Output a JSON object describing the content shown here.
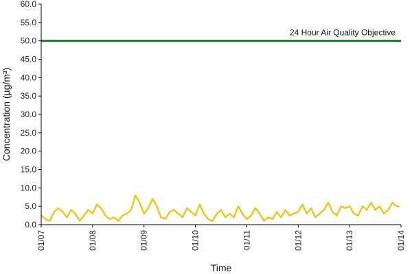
{
  "chart_data": {
    "type": "line",
    "ylabel": "Concentration (µg/m³)",
    "xlabel": "Time",
    "ylim": [
      0,
      60
    ],
    "yticks": [
      "0.0",
      "5.0",
      "10.0",
      "15.0",
      "20.0",
      "25.0",
      "30.0",
      "35.0",
      "40.0",
      "45.0",
      "50.0",
      "55.0",
      "60.0"
    ],
    "xlim": [
      "01/07",
      "01/14"
    ],
    "xticks": [
      "01/07",
      "01/08",
      "01/09",
      "01/10",
      "01/11",
      "01/12",
      "01/13",
      "01/14"
    ],
    "grid": false,
    "annotation": "24 Hour Air Quality Objective",
    "objective_value": 50,
    "series": [
      {
        "color": "#f2c21a",
        "points": [
          [
            "01/07 00:00",
            2.5
          ],
          [
            "01/07 02:00",
            1.5
          ],
          [
            "01/07 04:00",
            1.0
          ],
          [
            "01/07 06:00",
            3.5
          ],
          [
            "01/07 08:00",
            4.5
          ],
          [
            "01/07 10:00",
            3.5
          ],
          [
            "01/07 12:00",
            2.0
          ],
          [
            "01/07 14:00",
            4.0
          ],
          [
            "01/07 16:00",
            3.0
          ],
          [
            "01/07 18:00",
            1.0
          ],
          [
            "01/07 20:00",
            2.5
          ],
          [
            "01/07 22:00",
            4.0
          ],
          [
            "01/08 00:00",
            3.0
          ],
          [
            "01/08 02:00",
            5.5
          ],
          [
            "01/08 04:00",
            4.5
          ],
          [
            "01/08 06:00",
            2.5
          ],
          [
            "01/08 08:00",
            1.5
          ],
          [
            "01/08 10:00",
            2.0
          ],
          [
            "01/08 12:00",
            1.0
          ],
          [
            "01/08 14:00",
            2.5
          ],
          [
            "01/08 16:00",
            3.0
          ],
          [
            "01/08 18:00",
            4.0
          ],
          [
            "01/08 20:00",
            8.0
          ],
          [
            "01/08 22:00",
            6.0
          ],
          [
            "01/09 00:00",
            3.0
          ],
          [
            "01/09 02:00",
            4.5
          ],
          [
            "01/09 04:00",
            7.0
          ],
          [
            "01/09 06:00",
            5.0
          ],
          [
            "01/09 08:00",
            2.0
          ],
          [
            "01/09 10:00",
            1.5
          ],
          [
            "01/09 12:00",
            3.5
          ],
          [
            "01/09 14:00",
            4.0
          ],
          [
            "01/09 16:00",
            3.0
          ],
          [
            "01/09 18:00",
            2.0
          ],
          [
            "01/09 20:00",
            4.5
          ],
          [
            "01/09 22:00",
            3.5
          ],
          [
            "01/10 00:00",
            2.5
          ],
          [
            "01/10 02:00",
            5.5
          ],
          [
            "01/10 04:00",
            3.0
          ],
          [
            "01/10 06:00",
            1.5
          ],
          [
            "01/10 08:00",
            1.0
          ],
          [
            "01/10 10:00",
            3.0
          ],
          [
            "01/10 12:00",
            4.0
          ],
          [
            "01/10 14:00",
            2.0
          ],
          [
            "01/10 16:00",
            3.0
          ],
          [
            "01/10 18:00",
            2.0
          ],
          [
            "01/10 20:00",
            5.0
          ],
          [
            "01/10 22:00",
            3.0
          ],
          [
            "01/11 00:00",
            1.5
          ],
          [
            "01/11 02:00",
            2.5
          ],
          [
            "01/11 04:00",
            4.5
          ],
          [
            "01/11 06:00",
            3.0
          ],
          [
            "01/11 08:00",
            1.0
          ],
          [
            "01/11 10:00",
            2.0
          ],
          [
            "01/11 12:00",
            1.5
          ],
          [
            "01/11 14:00",
            3.5
          ],
          [
            "01/11 16:00",
            2.0
          ],
          [
            "01/11 18:00",
            4.0
          ],
          [
            "01/11 20:00",
            2.5
          ],
          [
            "01/11 22:00",
            3.0
          ],
          [
            "01/12 00:00",
            3.5
          ],
          [
            "01/12 02:00",
            5.5
          ],
          [
            "01/12 04:00",
            3.0
          ],
          [
            "01/12 06:00",
            4.5
          ],
          [
            "01/12 08:00",
            2.0
          ],
          [
            "01/12 10:00",
            3.0
          ],
          [
            "01/12 12:00",
            4.0
          ],
          [
            "01/12 14:00",
            6.0
          ],
          [
            "01/12 16:00",
            3.5
          ],
          [
            "01/12 18:00",
            2.5
          ],
          [
            "01/12 20:00",
            5.0
          ],
          [
            "01/12 22:00",
            4.5
          ],
          [
            "01/13 00:00",
            5.0
          ],
          [
            "01/13 02:00",
            3.0
          ],
          [
            "01/13 04:00",
            2.5
          ],
          [
            "01/13 06:00",
            5.0
          ],
          [
            "01/13 08:00",
            4.0
          ],
          [
            "01/13 10:00",
            6.0
          ],
          [
            "01/13 12:00",
            4.0
          ],
          [
            "01/13 14:00",
            5.0
          ],
          [
            "01/13 16:00",
            3.0
          ],
          [
            "01/13 18:00",
            4.0
          ],
          [
            "01/13 20:00",
            6.0
          ],
          [
            "01/13 22:00",
            5.0
          ],
          [
            "01/13 23:00",
            5.0
          ]
        ]
      }
    ]
  }
}
